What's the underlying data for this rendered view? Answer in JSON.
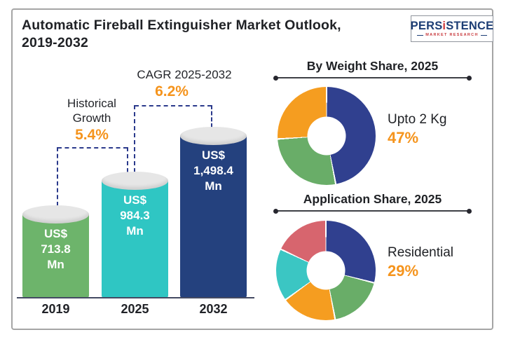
{
  "header": {
    "title_line1": "Automatic Fireball Extinguisher Market Outlook,",
    "title_line2": "2019-2032",
    "logo": {
      "part1": "PERS",
      "accent": "i",
      "part2": "STENCE",
      "subtitle": "MARKET RESEARCH"
    }
  },
  "colors": {
    "accent_orange": "#f5941d",
    "dash_navy": "#2b3a8c",
    "text_dark": "#1f2125"
  },
  "chart_data": [
    {
      "type": "bar",
      "title": "Automatic Fireball Extinguisher Market Outlook, 2019-2032",
      "unit": "US$ Mn",
      "categories": [
        "2019",
        "2025",
        "2032"
      ],
      "values": [
        713.8,
        984.3,
        1498.4
      ],
      "bar_value_labels": [
        "US$\n713.8\nMn",
        "US$\n984.3\nMn",
        "US$\n1,498.4\nMn"
      ],
      "bar_colors": [
        "#6db46b",
        "#2fc6c3",
        "#24417e"
      ],
      "annotations": [
        {
          "label": "Historical\nGrowth",
          "value": "5.4%",
          "between": [
            "2019",
            "2025"
          ]
        },
        {
          "label": "CAGR 2025-2032",
          "value": "6.2%",
          "between": [
            "2025",
            "2032"
          ]
        }
      ]
    },
    {
      "type": "pie",
      "title": "By Weight Share, 2025",
      "callout": {
        "label": "Upto 2 Kg",
        "value": "47%"
      },
      "segments": [
        {
          "label": "Upto 2 Kg",
          "value": 47,
          "color": "#30408f"
        },
        {
          "value": 27,
          "color": "#69ad68"
        },
        {
          "value": 26,
          "color": "#f59d20"
        }
      ],
      "legend_position": "right",
      "donut": true
    },
    {
      "type": "pie",
      "title": "Application Share, 2025",
      "callout": {
        "label": "Residential",
        "value": "29%"
      },
      "segments": [
        {
          "label": "Residential",
          "value": 29,
          "color": "#30408f"
        },
        {
          "value": 18,
          "color": "#69ad68"
        },
        {
          "value": 18,
          "color": "#f59d20"
        },
        {
          "value": 17,
          "color": "#3bc6c3"
        },
        {
          "value": 18,
          "color": "#d7656e"
        }
      ],
      "legend_position": "right",
      "donut": true
    }
  ]
}
